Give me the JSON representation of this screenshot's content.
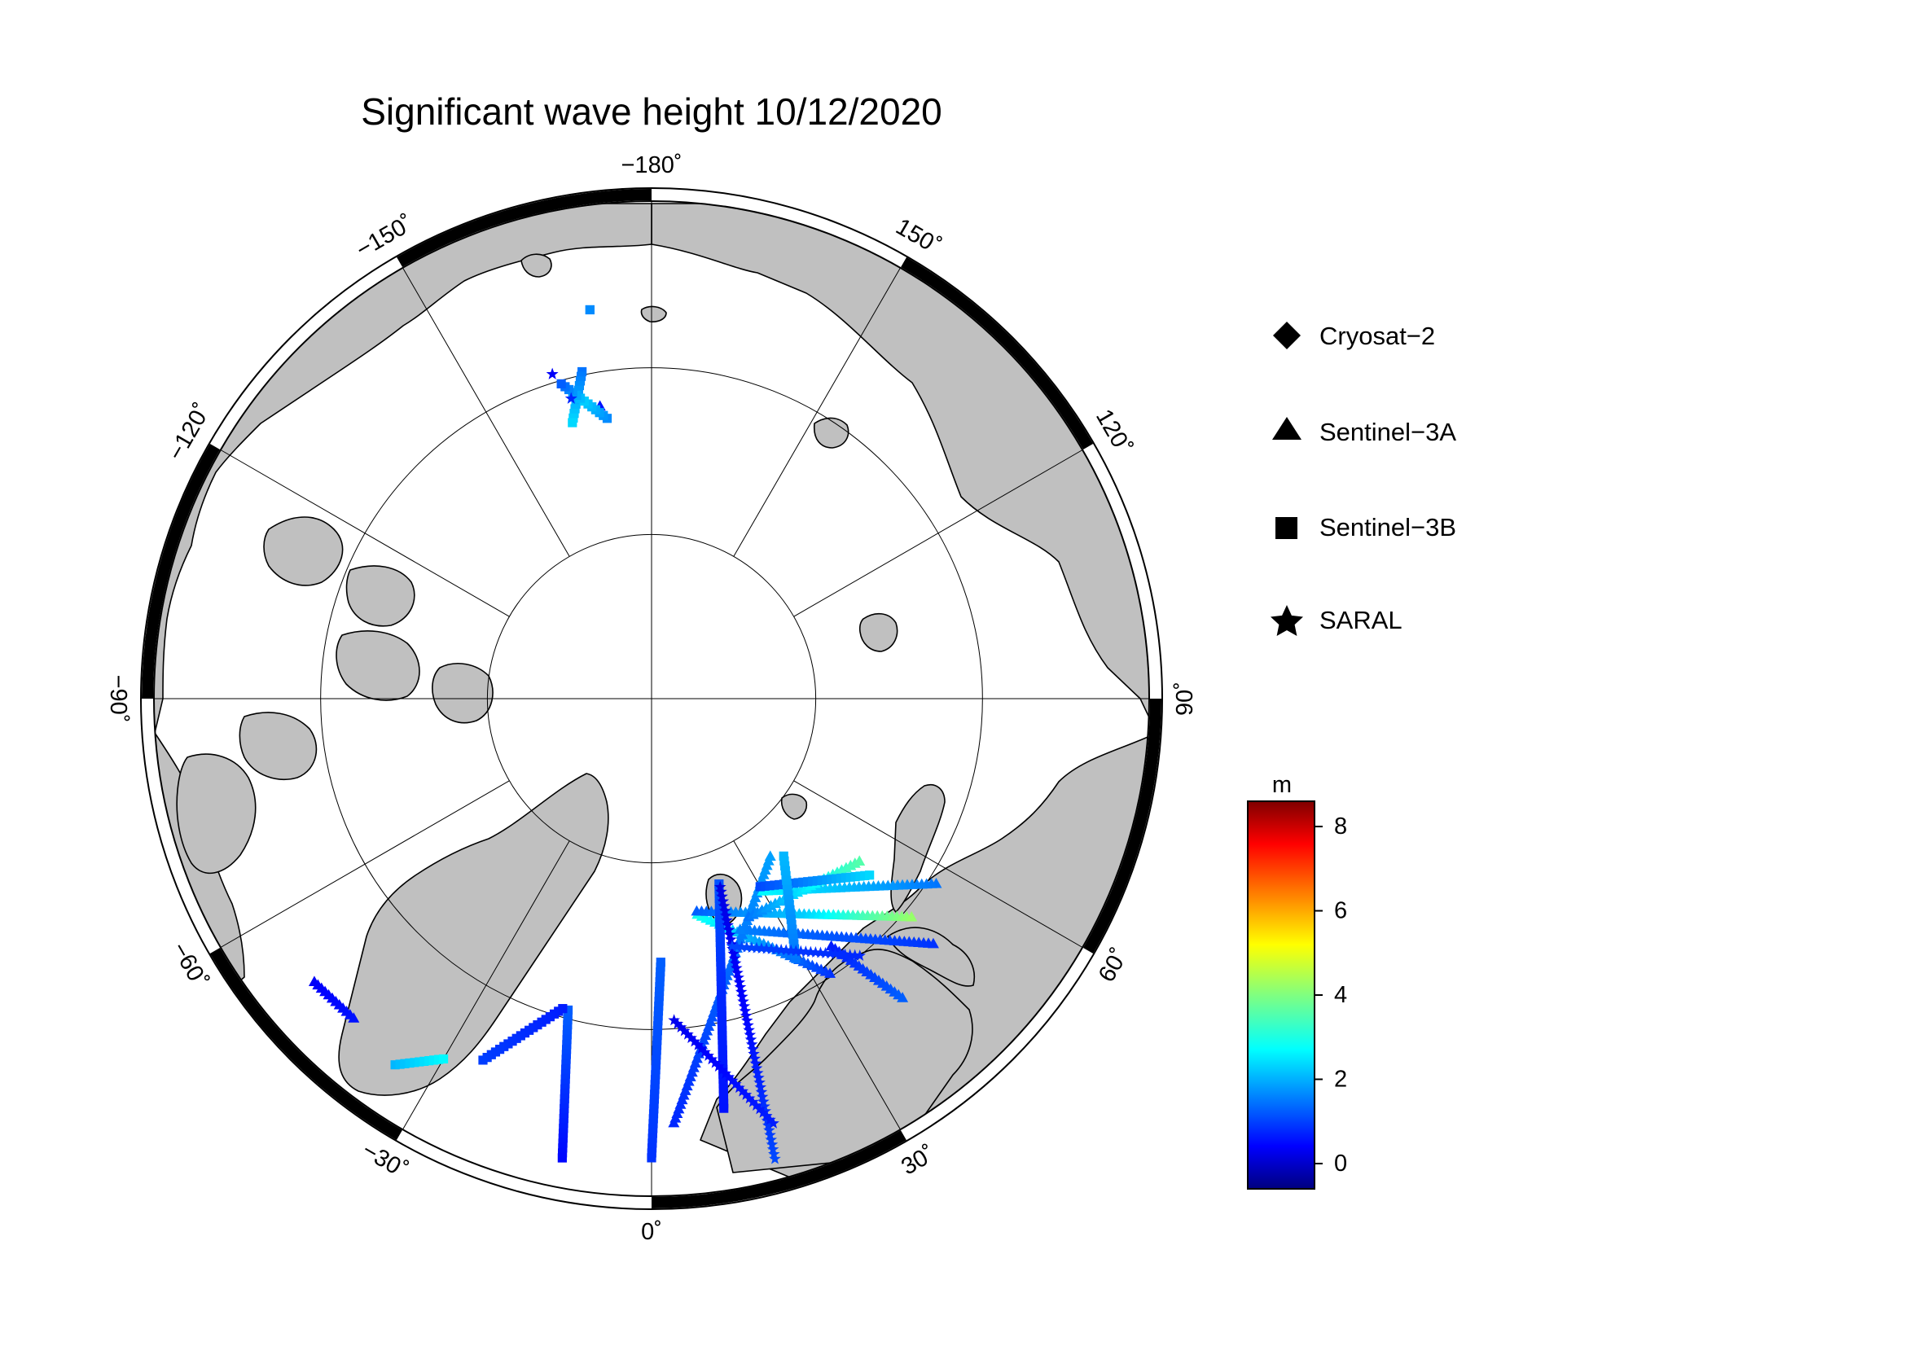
{
  "map": {
    "title": "Significant wave height 10/12/2020",
    "projection": "north-polar-stereographic",
    "center_lon_bottom": 0,
    "lat_circles": [
      80,
      70
    ],
    "meridian_step_deg": 30,
    "colors": {
      "land": "#c0c0c0",
      "ocean": "#ffffff",
      "frame_dark": "#000000",
      "frame_light": "#ffffff"
    },
    "lon_labels": [
      {
        "lon": 180,
        "text": "−180˚"
      },
      {
        "lon": 150,
        "text": "150˚"
      },
      {
        "lon": 120,
        "text": "120˚"
      },
      {
        "lon": 90,
        "text": "90˚"
      },
      {
        "lon": 60,
        "text": "60˚"
      },
      {
        "lon": 30,
        "text": "30˚"
      },
      {
        "lon": 0,
        "text": "0˚"
      },
      {
        "lon": -30,
        "text": "−30˚"
      },
      {
        "lon": -60,
        "text": "−60˚"
      },
      {
        "lon": -90,
        "text": "−90˚"
      },
      {
        "lon": -120,
        "text": "−120˚"
      },
      {
        "lon": -150,
        "text": "−150˚"
      }
    ]
  },
  "legend": {
    "items": [
      {
        "symbol": "diamond-icon",
        "label": "Cryosat−2"
      },
      {
        "symbol": "triangle-icon",
        "label": "Sentinel−3A"
      },
      {
        "symbol": "square-icon",
        "label": "Sentinel−3B"
      },
      {
        "symbol": "star-icon",
        "label": "SARAL"
      }
    ]
  },
  "colorbar": {
    "unit": "m",
    "min": -0.6,
    "max": 8.6,
    "ticks": [
      0,
      2,
      4,
      6,
      8
    ],
    "colormap": "jet"
  },
  "chart_data": {
    "type": "scatter",
    "title": "Significant wave height 10/12/2020",
    "value_unit": "m",
    "series": [
      {
        "name": "Sentinel−3A",
        "tracks": [
          {
            "from": [
              70.2,
              33
            ],
            "to": [
              76.6,
              12
            ],
            "hs": [
              1.0,
              1.6,
              2.2,
              3.0
            ]
          },
          {
            "from": [
              76.8,
              12
            ],
            "to": [
              69.5,
              50
            ],
            "hs": [
              1.4,
              1.9,
              2.4,
              3.4,
              4.2
            ]
          },
          {
            "from": [
              64.5,
              3
            ],
            "to": [
              78.0,
              37
            ],
            "hs": [
              0.9,
              1.2,
              1.6,
              2.0
            ]
          },
          {
            "from": [
              71.5,
              36
            ],
            "to": [
              66.5,
              40
            ],
            "hs": [
              0.8,
              1.4
            ]
          },
          {
            "from": [
              67.5,
              49
            ],
            "to": [
              75.0,
              21
            ],
            "hs": [
              1.0,
              1.3,
              1.7
            ]
          },
          {
            "from": [
              63.6,
              -50
            ],
            "to": [
              63.8,
              -43
            ],
            "hs": [
              0.5,
              0.7
            ]
          },
          {
            "from": [
              69.5,
              57
            ],
            "to": [
              76.5,
              30
            ],
            "hs": [
              1.6,
              2.2,
              2.8
            ]
          },
          {
            "from": [
              75.5,
              24
            ],
            "to": [
              74.0,
              52
            ],
            "hs": [
              1.6,
              2.3,
              3.0,
              3.6
            ]
          },
          {
            "from": [
              72.0,
              -170
            ],
            "to": [
              72.0,
              -170
            ],
            "hs": [
              0.7
            ]
          }
        ]
      },
      {
        "name": "Sentinel−3B",
        "tracks": [
          {
            "from": [
              62.0,
              -11
            ],
            "to": [
              70.5,
              -15
            ],
            "hs": [
              0.6,
              1.0,
              1.4
            ]
          },
          {
            "from": [
              70.5,
              -16
            ],
            "to": [
              66.0,
              -25
            ],
            "hs": [
              0.8,
              1.1
            ]
          },
          {
            "from": [
              63.2,
              -35
            ],
            "to": [
              65.0,
              -30
            ],
            "hs": [
              2.2,
              2.8
            ]
          },
          {
            "from": [
              65.0,
              10
            ],
            "to": [
              78.0,
              20
            ],
            "hs": [
              0.7,
              0.9,
              1.3
            ]
          },
          {
            "from": [
              62.5,
              0
            ],
            "to": [
              74.0,
              2
            ],
            "hs": [
              1.0,
              1.4
            ]
          },
          {
            "from": [
              76.8,
              30
            ],
            "to": [
              73.0,
              51
            ],
            "hs": [
              1.2,
              1.8,
              2.5
            ]
          },
          {
            "from": [
              72.0,
              29
            ],
            "to": [
              77.5,
              40
            ],
            "hs": [
              1.6,
              2.2
            ]
          },
          {
            "from": [
              69.8,
              -168
            ],
            "to": [
              72.6,
              -164
            ],
            "hs": [
              1.6,
              2.0,
              2.5
            ]
          },
          {
            "from": [
              72.8,
              -171
            ],
            "to": [
              70.2,
              -164
            ],
            "hs": [
              1.8,
              2.4,
              1.4
            ]
          },
          {
            "from": [
              66.3,
              -171
            ],
            "to": [
              66.3,
              -171
            ],
            "hs": [
              1.8
            ]
          }
        ]
      },
      {
        "name": "SARAL",
        "tracks": [
          {
            "from": [
              77.8,
              20
            ],
            "to": [
              61.5,
              15
            ],
            "hs": [
              0.3,
              0.6,
              1.2
            ]
          },
          {
            "from": [
              70.5,
              4
            ],
            "to": [
              63.5,
              16
            ],
            "hs": [
              0.4,
              0.8
            ]
          },
          {
            "from": [
              70.0,
              39
            ],
            "to": [
              74.2,
              18
            ],
            "hs": [
              0.9,
              1.2
            ]
          },
          {
            "from": [
              71.2,
              -165
            ],
            "to": [
              71.2,
              -165
            ],
            "hs": [
              0.9
            ]
          },
          {
            "from": [
              69.5,
              -163
            ],
            "to": [
              69.5,
              -163
            ],
            "hs": [
              0.5
            ]
          }
        ]
      }
    ]
  }
}
